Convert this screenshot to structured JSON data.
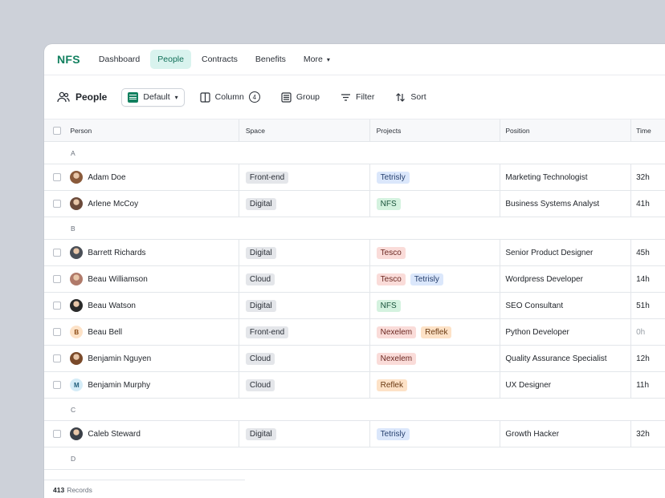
{
  "app": {
    "logo": "NFS"
  },
  "nav": [
    {
      "label": "Dashboard",
      "active": false
    },
    {
      "label": "People",
      "active": true
    },
    {
      "label": "Contracts",
      "active": false
    },
    {
      "label": "Benefits",
      "active": false
    },
    {
      "label": "More",
      "active": false,
      "dropdown": true
    }
  ],
  "toolbar": {
    "title": "People",
    "view_label": "Default",
    "column_label": "Column",
    "column_count": "4",
    "group_label": "Group",
    "filter_label": "Filter",
    "sort_label": "Sort"
  },
  "table": {
    "headers": {
      "person": "Person",
      "space": "Space",
      "projects": "Projects",
      "position": "Position",
      "time": "Time"
    },
    "groups": [
      {
        "letter": "A",
        "rows": [
          {
            "name": "Adam Doe",
            "avatar": "photo",
            "avatar_color": "#8a5a3a",
            "space": "Front-end",
            "projects": [
              {
                "name": "Tetrisly",
                "color": "blue"
              }
            ],
            "position": "Marketing Technologist",
            "time": "32h"
          },
          {
            "name": "Arlene McCoy",
            "avatar": "photo",
            "avatar_color": "#6b4a3a",
            "space": "Digital",
            "projects": [
              {
                "name": "NFS",
                "color": "green"
              }
            ],
            "position": "Business Systems Analyst",
            "time": "41h"
          }
        ]
      },
      {
        "letter": "B",
        "rows": [
          {
            "name": "Barrett Richards",
            "avatar": "photo",
            "avatar_color": "#4a4f57",
            "space": "Digital",
            "projects": [
              {
                "name": "Tesco",
                "color": "red"
              }
            ],
            "position": "Senior Product Designer",
            "time": "45h"
          },
          {
            "name": "Beau Williamson",
            "avatar": "photo",
            "avatar_color": "#b07a6a",
            "space": "Cloud",
            "projects": [
              {
                "name": "Tesco",
                "color": "red"
              },
              {
                "name": "Tetrisly",
                "color": "blue"
              }
            ],
            "position": "Wordpress Developer",
            "time": "14h"
          },
          {
            "name": "Beau Watson",
            "avatar": "photo",
            "avatar_color": "#2a2a2a",
            "space": "Digital",
            "projects": [
              {
                "name": "NFS",
                "color": "green"
              }
            ],
            "position": "SEO Consultant",
            "time": "51h"
          },
          {
            "name": "Beau Bell",
            "avatar": "B",
            "avatar_color": "#fde2c7",
            "avatar_text_color": "#8a4a14",
            "space": "Front-end",
            "projects": [
              {
                "name": "Nexelem",
                "color": "red"
              },
              {
                "name": "Reflek",
                "color": "orange"
              }
            ],
            "position": "Python Developer",
            "time": "0h",
            "time_muted": true
          },
          {
            "name": "Benjamin Nguyen",
            "avatar": "photo",
            "avatar_color": "#7a4a2a",
            "space": "Cloud",
            "projects": [
              {
                "name": "Nexelem",
                "color": "red"
              }
            ],
            "position": "Quality Assurance Specialist",
            "time": "12h"
          },
          {
            "name": "Benjamin Murphy",
            "avatar": "M",
            "avatar_color": "#d4ecf7",
            "avatar_text_color": "#1e5c7a",
            "space": "Cloud",
            "projects": [
              {
                "name": "Reflek",
                "color": "orange"
              }
            ],
            "position": "UX Designer",
            "time": "11h"
          }
        ]
      },
      {
        "letter": "C",
        "rows": [
          {
            "name": "Caleb Steward",
            "avatar": "photo",
            "avatar_color": "#3a3f47",
            "space": "Digital",
            "projects": [
              {
                "name": "Tetrisly",
                "color": "blue"
              }
            ],
            "position": "Growth Hacker",
            "time": "32h"
          }
        ]
      },
      {
        "letter": "D",
        "rows": []
      }
    ]
  },
  "footer": {
    "count": "413",
    "label": "Records"
  }
}
